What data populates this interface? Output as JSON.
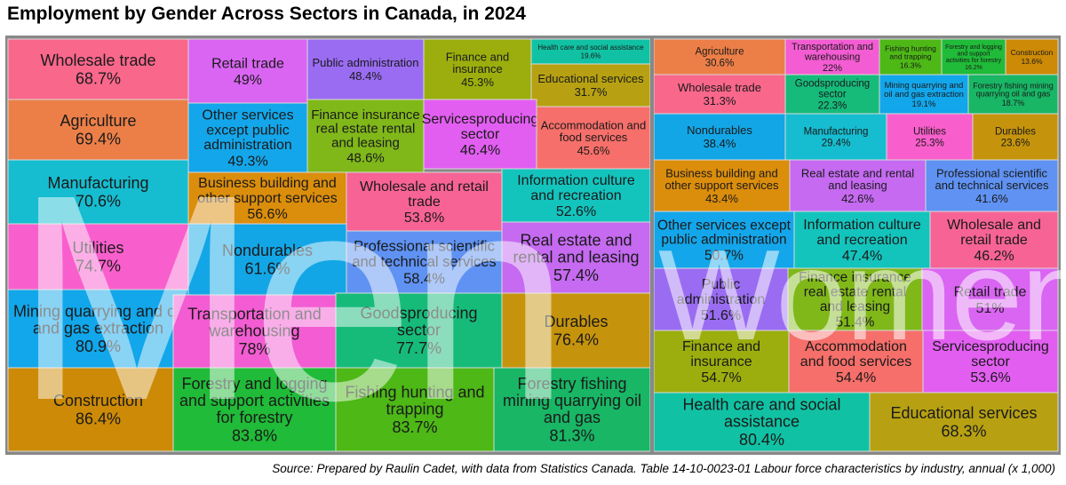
{
  "title": "Employment by Gender Across Sectors in Canada, in 2024",
  "source": "Source: Prepared by Raulin Cadet, with data from Statistics Canada. Table 14-10-0023-01 Labour force characteristics by industry, annual (x 1,000)",
  "panel_labels": {
    "men": "Men",
    "women": "Women"
  },
  "chart_data": [
    {
      "type": "treemap",
      "group": "Men",
      "value_unit": "%",
      "colors": {
        "Wholesale trade": "#f9678b",
        "Agriculture": "#ec7f48",
        "Manufacturing": "#16bdd0",
        "Utilities": "#f95fcc",
        "Mining quarrying and oil and gas extraction": "#12a6ea",
        "Construction": "#cc8a06",
        "Retail trade": "#d965f2",
        "Other services except public administration": "#14a6ea",
        "Business building and other support services": "#db8d0c",
        "Nondurables": "#13a6e6",
        "Transportation and warehousing": "#f35cd2",
        "Forestry and logging and support activities for forestry": "#20bb38",
        "Public administration": "#9a6cf2",
        "Finance insurance real estate rental and leasing": "#80b81a",
        "Wholesale and retail trade": "#f76395",
        "Professional scientific and technical services": "#5f92f2",
        "Goodsproducing sector": "#16bb7a",
        "Fishing hunting and trapping": "#4db816",
        "Finance and insurance": "#9bae0e",
        "Health care and social assistance": "#10c2a3",
        "Educational services": "#b7a112",
        "Servicesproducing sector": "#e25ef1",
        "Accommodation and food services": "#f66f6a",
        "Information culture and recreation": "#13c4bd",
        "Real estate and rental and leasing": "#c56af1",
        "Durables": "#c6940c",
        "Forestry fishing mining quarrying oil and gas": "#18b665"
      },
      "cells": [
        {
          "label": "Wholesale trade",
          "value": 68.7
        },
        {
          "label": "Agriculture",
          "value": 69.4
        },
        {
          "label": "Manufacturing",
          "value": 70.6
        },
        {
          "label": "Utilities",
          "value": 74.7
        },
        {
          "label": "Mining quarrying and oil and gas extraction",
          "value": 80.9
        },
        {
          "label": "Construction",
          "value": 86.4
        },
        {
          "label": "Retail trade",
          "value": 49
        },
        {
          "label": "Other services except public administration",
          "value": 49.3
        },
        {
          "label": "Business building and other support services",
          "value": 56.6
        },
        {
          "label": "Nondurables",
          "value": 61.6
        },
        {
          "label": "Transportation and warehousing",
          "value": 78
        },
        {
          "label": "Forestry and logging and support activities for forestry",
          "value": 83.8
        },
        {
          "label": "Public administration",
          "value": 48.4
        },
        {
          "label": "Finance insurance real estate rental and leasing",
          "value": 48.6
        },
        {
          "label": "Wholesale and retail trade",
          "value": 53.8
        },
        {
          "label": "Professional scientific and technical services",
          "value": 58.4
        },
        {
          "label": "Goodsproducing sector",
          "value": 77.7
        },
        {
          "label": "Fishing hunting and trapping",
          "value": 83.7
        },
        {
          "label": "Finance and insurance",
          "value": 45.3
        },
        {
          "label": "Health care and social assistance",
          "value": 19.6
        },
        {
          "label": "Educational services",
          "value": 31.7
        },
        {
          "label": "Servicesproducing sector",
          "value": 46.4
        },
        {
          "label": "Accommodation and food services",
          "value": 45.6
        },
        {
          "label": "Information culture and recreation",
          "value": 52.6
        },
        {
          "label": "Real estate and rental and leasing",
          "value": 57.4
        },
        {
          "label": "Durables",
          "value": 76.4
        },
        {
          "label": "Forestry fishing mining quarrying oil and gas",
          "value": 81.3
        }
      ]
    },
    {
      "type": "treemap",
      "group": "Women",
      "value_unit": "%",
      "colors": {
        "Agriculture": "#ec7f48",
        "Transportation and warehousing": "#f35cd2",
        "Fishing hunting and trapping": "#4db816",
        "Forestry and logging and support activities for forestry": "#20bb38",
        "Construction": "#cc8a06",
        "Wholesale trade": "#f9678b",
        "Goodsproducing sector": "#16bb7a",
        "Mining quarrying and oil and gas extraction": "#12a6ea",
        "Forestry fishing mining quarrying oil and gas": "#18b665",
        "Nondurables": "#13a6e6",
        "Manufacturing": "#16bdd0",
        "Utilities": "#f95fcc",
        "Durables": "#c6940c",
        "Business building and other support services": "#db8d0c",
        "Real estate and rental and leasing": "#c56af1",
        "Professional scientific and technical services": "#5f92f2",
        "Other services except public administration": "#14a6ea",
        "Information culture and recreation": "#13c4bd",
        "Wholesale and retail trade": "#f76395",
        "Public administration": "#9a6cf2",
        "Finance insurance real estate rental and leasing": "#80b81a",
        "Retail trade": "#d965f2",
        "Finance and insurance": "#9bae0e",
        "Accommodation and food services": "#f66f6a",
        "Servicesproducing sector": "#e25ef1",
        "Health care and social assistance": "#10c2a3",
        "Educational services": "#b7a112"
      },
      "cells": [
        {
          "label": "Agriculture",
          "value": 30.6
        },
        {
          "label": "Transportation and warehousing",
          "value": 22
        },
        {
          "label": "Fishing hunting and trapping",
          "value": 16.3
        },
        {
          "label": "Forestry and logging and support activities for forestry",
          "value": 16.2
        },
        {
          "label": "Construction",
          "value": 13.6
        },
        {
          "label": "Wholesale trade",
          "value": 31.3
        },
        {
          "label": "Goodsproducing sector",
          "value": 22.3
        },
        {
          "label": "Mining quarrying and oil and gas extraction",
          "value": 19.1
        },
        {
          "label": "Forestry fishing mining quarrying oil and gas",
          "value": 18.7
        },
        {
          "label": "Nondurables",
          "value": 38.4
        },
        {
          "label": "Manufacturing",
          "value": 29.4
        },
        {
          "label": "Utilities",
          "value": 25.3
        },
        {
          "label": "Durables",
          "value": 23.6
        },
        {
          "label": "Business building and other support services",
          "value": 43.4
        },
        {
          "label": "Real estate and rental and leasing",
          "value": 42.6
        },
        {
          "label": "Professional scientific and technical services",
          "value": 41.6
        },
        {
          "label": "Other services except public administration",
          "value": 50.7
        },
        {
          "label": "Information culture and recreation",
          "value": 47.4
        },
        {
          "label": "Wholesale and retail trade",
          "value": 46.2
        },
        {
          "label": "Public administration",
          "value": 51.6
        },
        {
          "label": "Finance insurance real estate rental and leasing",
          "value": 51.4
        },
        {
          "label": "Retail trade",
          "value": 51
        },
        {
          "label": "Finance and insurance",
          "value": 54.7
        },
        {
          "label": "Accommodation and food services",
          "value": 54.4
        },
        {
          "label": "Servicesproducing sector",
          "value": 53.6
        },
        {
          "label": "Health care and social assistance",
          "value": 80.4
        },
        {
          "label": "Educational services",
          "value": 68.3
        }
      ]
    }
  ]
}
